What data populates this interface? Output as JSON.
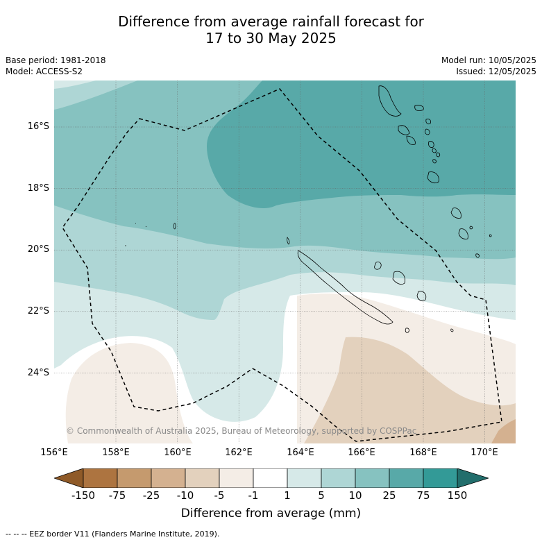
{
  "title": {
    "line1": "Difference from average rainfall forecast for",
    "line2": "17 to 30 May 2025"
  },
  "meta_left": {
    "base_period": "Base period: 1981-2018",
    "model": "Model: ACCESS-S2"
  },
  "meta_right": {
    "model_run": "Model run: 10/05/2025",
    "issued": "Issued: 12/05/2025"
  },
  "map": {
    "lat_labels": [
      "16°S",
      "18°S",
      "20°S",
      "22°S",
      "24°S"
    ],
    "lon_labels": [
      "156°E",
      "158°E",
      "160°E",
      "162°E",
      "164°E",
      "166°E",
      "168°E",
      "170°E"
    ],
    "copyright": "© Commonwealth of Australia 2025, Bureau of Meteorology, supported by COSPPac"
  },
  "colorbar": {
    "ticks": [
      "-150",
      "-75",
      "-25",
      "-10",
      "-5",
      "-1",
      "1",
      "5",
      "10",
      "25",
      "75",
      "150"
    ],
    "colors": [
      "#8f5a28",
      "#ad7440",
      "#c59a6e",
      "#d4b190",
      "#e3d1bd",
      "#f4ede6",
      "#ffffff",
      "#d6e9e8",
      "#aed6d5",
      "#86c2c0",
      "#58a9a8",
      "#339a97",
      "#226e6c"
    ],
    "title": "Difference from average (mm)"
  },
  "footnote": "-- -- -- EEZ border V11 (Flanders Marine Institute, 2019)."
}
